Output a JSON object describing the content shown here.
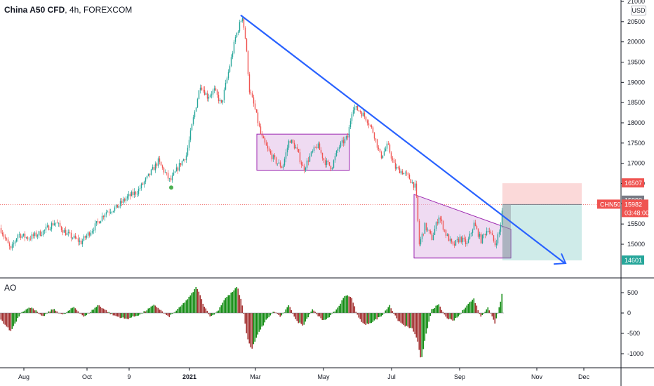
{
  "header": {
    "symbol": "China A50 CFD",
    "interval": "4h",
    "exchange": "FOREXCOM",
    "sep1": ", ",
    "sep2": ", "
  },
  "currency_badge": "USD",
  "indicator_label": "AO",
  "price_tags": {
    "target_high": "16507",
    "entry": "15990",
    "symbol_short": "CHN50",
    "last_price": "15982",
    "countdown": "03:48:00",
    "stop_low": "14601"
  },
  "colors": {
    "up": "#26a69a",
    "down": "#ef5350",
    "ao_up": "#138c13",
    "ao_down": "#a33131",
    "trendline": "#2962ff",
    "rect_fill": "#e1bee7",
    "rect_stroke": "#9c27b0",
    "profit": "#26a69a",
    "loss": "#ef5350"
  },
  "chart_data": {
    "type": "candlestick",
    "ylim": [
      14400,
      21000
    ],
    "y_ticks": [
      15000,
      15500,
      16000,
      16500,
      17000,
      17500,
      18000,
      18500,
      19000,
      19500,
      20000,
      20500,
      21000
    ],
    "x_ticks": [
      "Aug",
      "Oct",
      "9",
      "2021",
      "Mar",
      "May",
      "Jul",
      "Sep",
      "Nov",
      "Dec"
    ],
    "ao_ticks": [
      500,
      0,
      -500,
      -1000
    ],
    "ao_ylim": [
      -1300,
      750
    ],
    "path": [
      [
        0,
        15400
      ],
      [
        8,
        15100
      ],
      [
        15,
        14850
      ],
      [
        25,
        15250
      ],
      [
        40,
        15150
      ],
      [
        60,
        15300
      ],
      [
        78,
        15550
      ],
      [
        95,
        15250
      ],
      [
        115,
        15050
      ],
      [
        135,
        15450
      ],
      [
        150,
        15800
      ],
      [
        165,
        15900
      ],
      [
        180,
        16150
      ],
      [
        195,
        16300
      ],
      [
        210,
        16650
      ],
      [
        225,
        17050
      ],
      [
        242,
        16550
      ],
      [
        255,
        16950
      ],
      [
        265,
        17200
      ],
      [
        275,
        18100
      ],
      [
        285,
        18950
      ],
      [
        295,
        18650
      ],
      [
        305,
        18800
      ],
      [
        315,
        18450
      ],
      [
        325,
        19250
      ],
      [
        335,
        20100
      ],
      [
        345,
        20650
      ],
      [
        350,
        19950
      ],
      [
        355,
        18800
      ],
      [
        362,
        18400
      ],
      [
        372,
        17650
      ],
      [
        382,
        17300
      ],
      [
        392,
        17050
      ],
      [
        402,
        16900
      ],
      [
        412,
        17600
      ],
      [
        422,
        17350
      ],
      [
        432,
        16850
      ],
      [
        442,
        17200
      ],
      [
        452,
        17450
      ],
      [
        462,
        17050
      ],
      [
        472,
        16900
      ],
      [
        482,
        17400
      ],
      [
        495,
        17650
      ],
      [
        502,
        18400
      ],
      [
        512,
        18300
      ],
      [
        522,
        18100
      ],
      [
        532,
        17750
      ],
      [
        542,
        17150
      ],
      [
        552,
        17450
      ],
      [
        562,
        16900
      ],
      [
        572,
        16800
      ],
      [
        582,
        16650
      ],
      [
        592,
        16400
      ],
      [
        597,
        15000
      ],
      [
        605,
        15450
      ],
      [
        615,
        15150
      ],
      [
        625,
        15700
      ],
      [
        635,
        15250
      ],
      [
        645,
        14950
      ],
      [
        655,
        15150
      ],
      [
        665,
        15000
      ],
      [
        675,
        15500
      ],
      [
        685,
        15100
      ],
      [
        695,
        15400
      ],
      [
        705,
        15000
      ],
      [
        712,
        15350
      ],
      [
        716,
        15990
      ]
    ],
    "ao_path": [
      [
        0,
        -150
      ],
      [
        15,
        -450
      ],
      [
        30,
        30
      ],
      [
        45,
        150
      ],
      [
        60,
        -100
      ],
      [
        75,
        100
      ],
      [
        90,
        -50
      ],
      [
        105,
        150
      ],
      [
        120,
        -100
      ],
      [
        140,
        200
      ],
      [
        160,
        -50
      ],
      [
        180,
        -150
      ],
      [
        200,
        -30
      ],
      [
        220,
        200
      ],
      [
        240,
        -100
      ],
      [
        255,
        120
      ],
      [
        270,
        400
      ],
      [
        280,
        650
      ],
      [
        290,
        200
      ],
      [
        300,
        -100
      ],
      [
        310,
        50
      ],
      [
        320,
        350
      ],
      [
        330,
        500
      ],
      [
        338,
        650
      ],
      [
        345,
        200
      ],
      [
        352,
        -600
      ],
      [
        358,
        -900
      ],
      [
        368,
        -500
      ],
      [
        378,
        -200
      ],
      [
        390,
        50
      ],
      [
        400,
        -100
      ],
      [
        412,
        200
      ],
      [
        422,
        -200
      ],
      [
        432,
        -300
      ],
      [
        445,
        100
      ],
      [
        460,
        -200
      ],
      [
        472,
        -50
      ],
      [
        482,
        150
      ],
      [
        492,
        450
      ],
      [
        500,
        400
      ],
      [
        510,
        -100
      ],
      [
        520,
        -300
      ],
      [
        532,
        -200
      ],
      [
        545,
        -50
      ],
      [
        555,
        200
      ],
      [
        565,
        -150
      ],
      [
        575,
        -300
      ],
      [
        588,
        -400
      ],
      [
        595,
        -700
      ],
      [
        600,
        -1200
      ],
      [
        606,
        -600
      ],
      [
        615,
        100
      ],
      [
        625,
        200
      ],
      [
        635,
        -100
      ],
      [
        645,
        -200
      ],
      [
        655,
        -50
      ],
      [
        665,
        200
      ],
      [
        675,
        350
      ],
      [
        685,
        -100
      ],
      [
        695,
        150
      ],
      [
        705,
        -250
      ],
      [
        712,
        200
      ],
      [
        716,
        580
      ]
    ]
  }
}
